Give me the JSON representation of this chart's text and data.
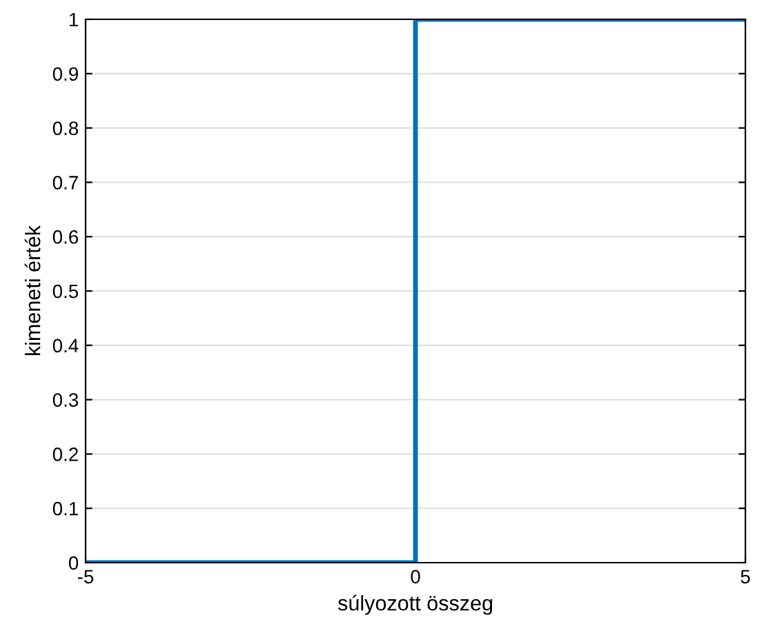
{
  "chart_data": {
    "type": "step",
    "xlabel": "súlyozott összeg",
    "ylabel": "kimeneti érték",
    "x": [
      -5,
      0,
      5
    ],
    "series": [
      {
        "color": "#0072bd",
        "values": [
          0,
          1,
          1
        ]
      }
    ],
    "xlim": [
      -5,
      5
    ],
    "xticks": [
      -5,
      0,
      5
    ],
    "ylim": [
      0,
      1
    ],
    "yticks": [
      0,
      0.1,
      0.2,
      0.3,
      0.4,
      0.5,
      0.6,
      0.7,
      0.8,
      0.9,
      1
    ],
    "grid": "y",
    "legend": false,
    "line_style": "solid",
    "marker": "none"
  }
}
